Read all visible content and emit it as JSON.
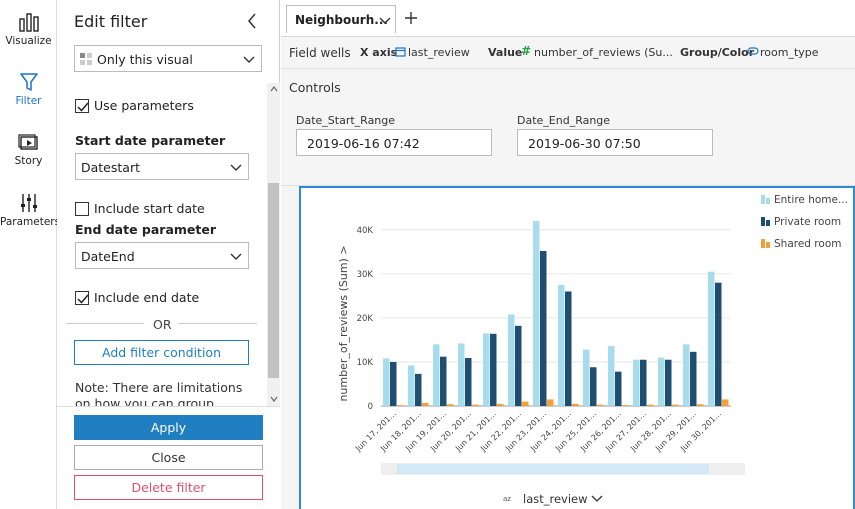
{
  "rail": {
    "items": [
      {
        "label": "Visualize"
      },
      {
        "label": "Filter"
      },
      {
        "label": "Story"
      },
      {
        "label": "Parameters"
      }
    ]
  },
  "panel": {
    "title": "Edit filter",
    "scope_select": "Only this visual",
    "use_parameters": "Use parameters",
    "start_param_heading": "Start date parameter",
    "start_param_value": "Datestart",
    "include_start": "Include start date",
    "end_param_heading": "End date parameter",
    "end_param_value": "DateEnd",
    "include_end": "Include end date",
    "or": "OR",
    "add_condition": "Add filter condition",
    "note": "Note: There are limitations on how you can group filters",
    "apply": "Apply",
    "close": "Close",
    "delete": "Delete filter",
    "accent": "#1f7fc0",
    "danger": "#e0506a"
  },
  "tabs": [
    {
      "label": "Neighbourh..."
    }
  ],
  "fieldwells": {
    "title": "Field wells",
    "xaxis_label": "X axis",
    "xaxis_value": "last_review",
    "value_label": "Value",
    "value_value": "number_of_reviews (Su...",
    "group_label": "Group/Color",
    "group_value": "room_type"
  },
  "controls": {
    "title": "Controls",
    "start": {
      "label": "Date_Start_Range",
      "value": "2019-06-16 07:42"
    },
    "end": {
      "label": "Date_End_Range",
      "value": "2019-06-30 07:50"
    }
  },
  "chart_data": {
    "type": "bar",
    "ylabel": "number_of_reviews (Sum)",
    "xlabel": "last_review",
    "ylim": [
      0,
      42000
    ],
    "yticks": [
      "0",
      "10K",
      "20K",
      "30K",
      "40K"
    ],
    "ytick_values": [
      0,
      10000,
      20000,
      30000,
      40000
    ],
    "categories": [
      "Jun 17, 201...",
      "Jun 18, 201...",
      "Jun 19, 201...",
      "Jun 20, 201...",
      "Jun 21, 201...",
      "Jun 22, 201...",
      "Jun 23, 201...",
      "Jun 24, 201...",
      "Jun 25, 201...",
      "Jun 26, 201...",
      "Jun 27, 201...",
      "Jun 28, 201...",
      "Jun 29, 201...",
      "Jun 30, 201..."
    ],
    "series": [
      {
        "name": "Entire home...",
        "color": "#a6dcec",
        "values": [
          10800,
          9200,
          14000,
          14200,
          16500,
          20800,
          42000,
          27500,
          12800,
          13600,
          10500,
          11000,
          14000,
          30500
        ]
      },
      {
        "name": "Private room",
        "color": "#1f4e70",
        "values": [
          10000,
          7300,
          11200,
          10900,
          16400,
          18200,
          35200,
          26000,
          8800,
          7800,
          10500,
          10500,
          12300,
          28000
        ]
      },
      {
        "name": "Shared room",
        "color": "#f2a03c",
        "values": [
          200,
          700,
          400,
          300,
          500,
          1000,
          1500,
          500,
          300,
          200,
          300,
          300,
          400,
          1500
        ]
      }
    ],
    "grid": true,
    "legend": "right"
  }
}
